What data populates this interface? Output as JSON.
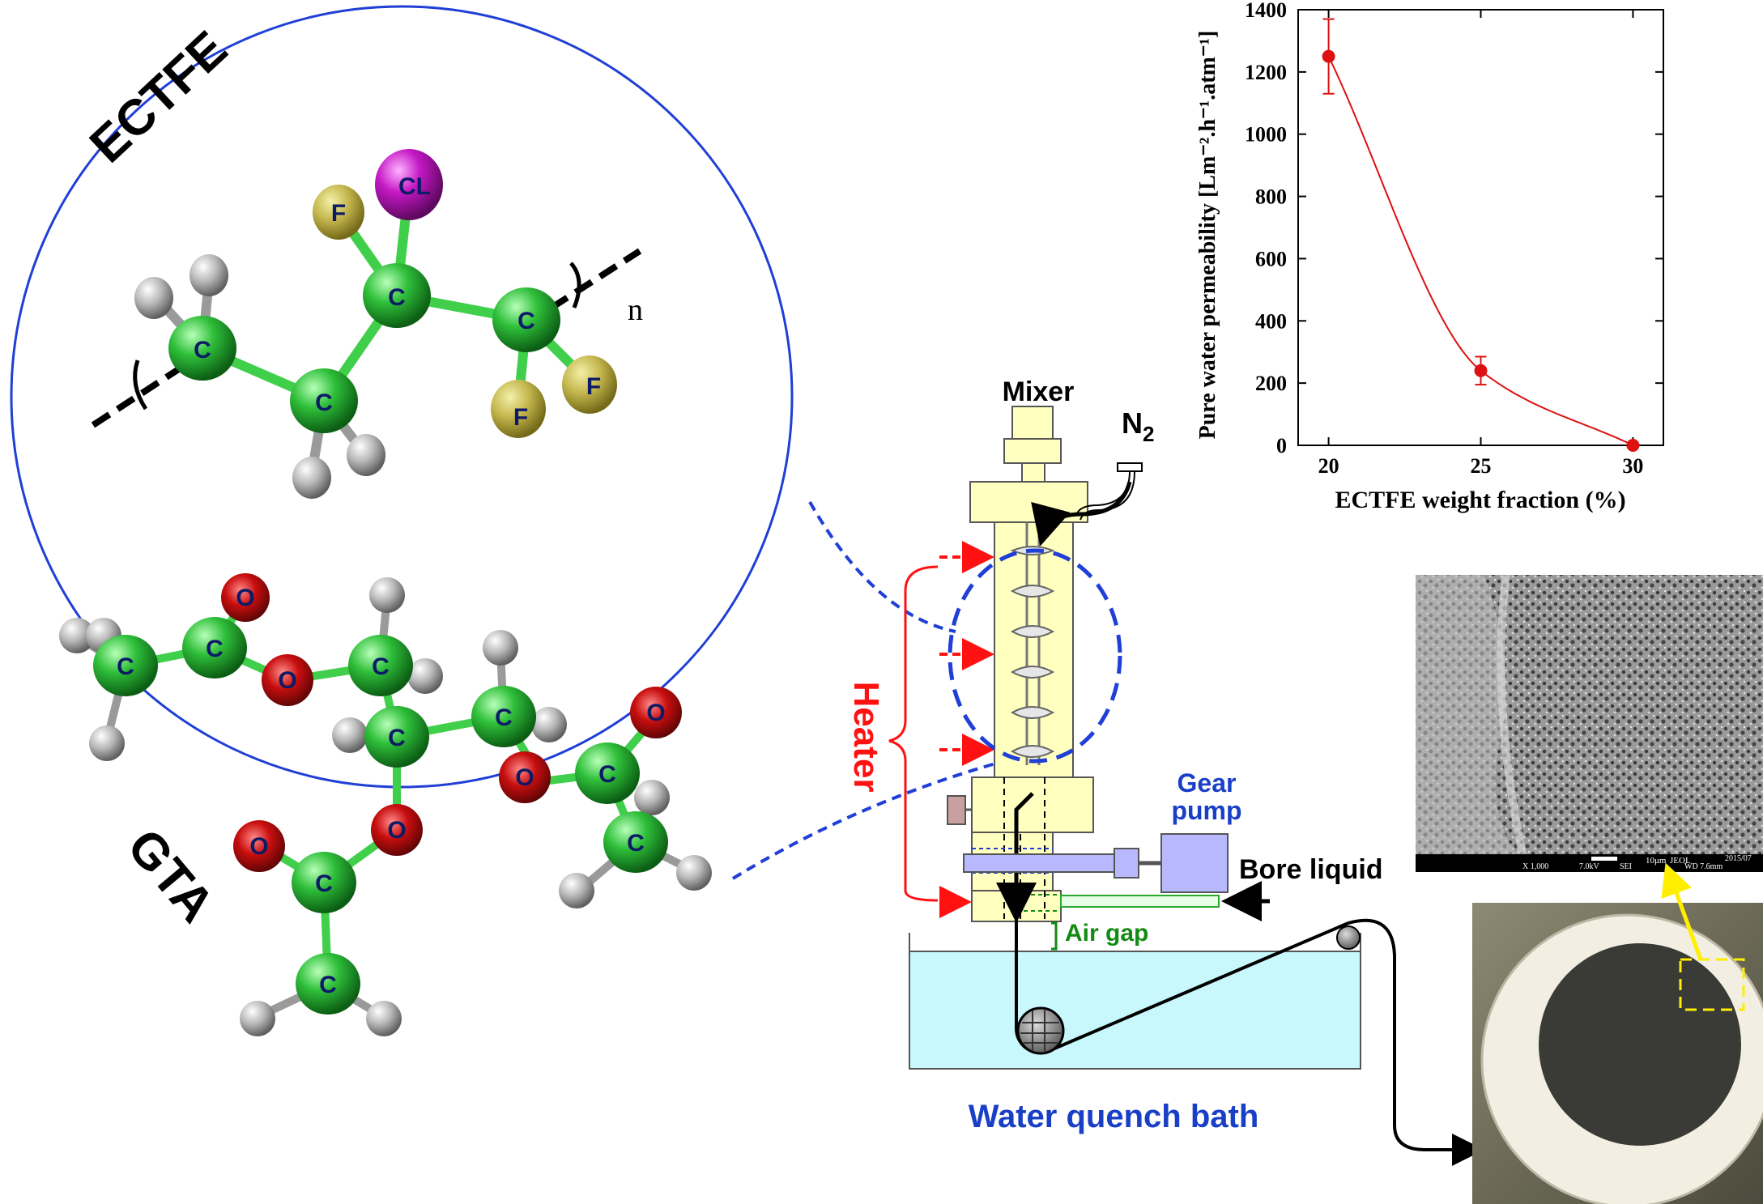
{
  "molecules": {
    "ectfe_title": "ECTFE",
    "gta_title": "GTA",
    "repeat_subscript": "n",
    "atoms": {
      "carbon": "C",
      "fluorine": "F",
      "chlorine": "CL",
      "oxygen": "O"
    }
  },
  "process": {
    "mixer": "Mixer",
    "n2_main": "N",
    "n2_sub": "2",
    "heater": "Heater",
    "gear_pump_line1": "Gear",
    "gear_pump_line2": "pump",
    "bore_liquid": "Bore liquid",
    "air_gap": "Air gap",
    "water_quench_bath": "Water quench bath"
  },
  "sem": {
    "scale_text": "10μm",
    "footer_parts": [
      "X 1,000",
      "7.0kV",
      "SEI",
      "WD 7.6mm",
      "2015/07"
    ],
    "footer_tag": "JEOL"
  },
  "colors": {
    "outline_blue": "#1f3fd6",
    "heater_red": "#ff1111",
    "label_blue": "#1a3fc7",
    "label_green": "#138a13",
    "curve_red": "#dd1111",
    "yellow_highlight": "#ffee00",
    "bath_fill": "#c8f8fb"
  },
  "chart_data": {
    "type": "scatter",
    "title": "",
    "xlabel": "ECTFE weight fraction (%)",
    "ylabel": "Pure water permeability [Lm⁻².h⁻¹.atm⁻¹]",
    "xlim": [
      19,
      31
    ],
    "ylim": [
      0,
      1400
    ],
    "x_ticks": [
      20,
      25,
      30
    ],
    "y_ticks": [
      0,
      200,
      400,
      600,
      800,
      1000,
      1200,
      1400
    ],
    "grid": false,
    "legend": "none",
    "series": [
      {
        "x": [
          20,
          25,
          30
        ],
        "y": [
          1250,
          240,
          0
        ],
        "error": [
          120,
          45,
          0
        ],
        "fit_curve": true
      }
    ]
  }
}
